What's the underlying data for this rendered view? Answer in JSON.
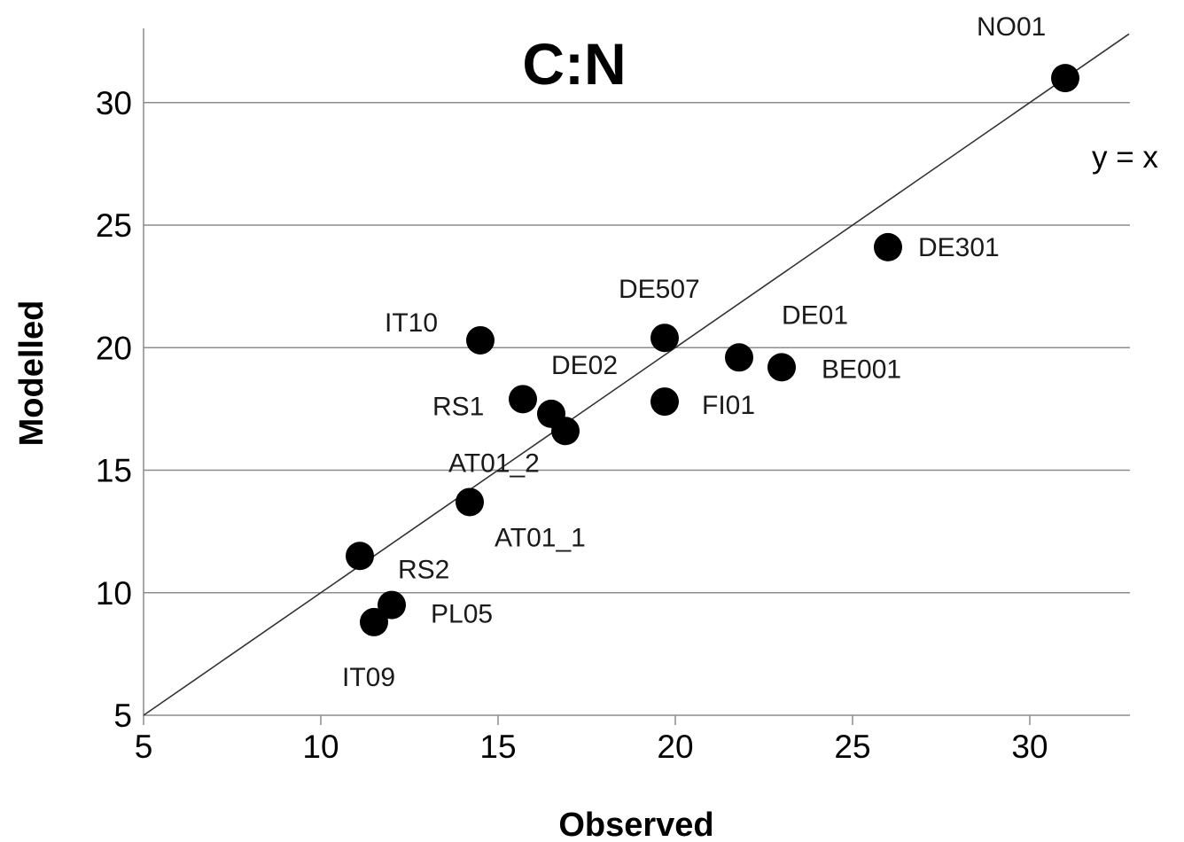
{
  "chart_data": {
    "type": "scatter",
    "title": "C:N",
    "xlabel": "Observed",
    "ylabel": "Modelled",
    "xlim": [
      5,
      33
    ],
    "ylim": [
      5,
      33
    ],
    "xticks": [
      "5",
      "10",
      "15",
      "20",
      "25",
      "30"
    ],
    "yticks": [
      "5",
      "10",
      "15",
      "20",
      "25",
      "30"
    ],
    "grid": "horizontal",
    "reference_line": {
      "label": "y = x",
      "slope": 1,
      "intercept": 0
    },
    "point_color": "#000000",
    "points": [
      {
        "label": "NO01",
        "x": 31.0,
        "y": 31.0
      },
      {
        "label": "DE301",
        "x": 26.0,
        "y": 24.1
      },
      {
        "label": "DE507",
        "x": 19.7,
        "y": 20.4
      },
      {
        "label": "IT10",
        "x": 14.5,
        "y": 20.3
      },
      {
        "label": "DE01",
        "x": 21.8,
        "y": 19.6
      },
      {
        "label": "BE001",
        "x": 23.0,
        "y": 19.2
      },
      {
        "label": "RS1",
        "x": 15.7,
        "y": 17.9
      },
      {
        "label": "FI01",
        "x": 19.7,
        "y": 17.8
      },
      {
        "label": "DE02",
        "x": 16.5,
        "y": 17.3
      },
      {
        "label": "AT01_2",
        "x": 16.9,
        "y": 16.6
      },
      {
        "label": "AT01_1",
        "x": 14.2,
        "y": 13.7
      },
      {
        "label": "RS2",
        "x": 11.1,
        "y": 11.5
      },
      {
        "label": "PL05",
        "x": 12.0,
        "y": 9.5
      },
      {
        "label": "IT09",
        "x": 11.5,
        "y": 8.8
      }
    ]
  }
}
